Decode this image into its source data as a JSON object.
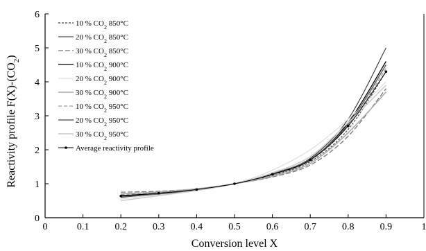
{
  "chart_data": {
    "type": "line",
    "xlabel": "Conversion level X",
    "ylabel": "Reactivity profile F(X)-(CO",
    "ylabel_sub": "2",
    "ylabel_close": ")",
    "xlim": [
      0,
      1
    ],
    "ylim": [
      0,
      6
    ],
    "x_ticks": [
      "0",
      "0.1",
      "0.2",
      "0.3",
      "0.4",
      "0.5",
      "0.6",
      "0.7",
      "0.8",
      "0.9",
      "1"
    ],
    "y_ticks": [
      "0",
      "1",
      "2",
      "3",
      "4",
      "5",
      "6"
    ],
    "grid": false,
    "legend_position": "top-left",
    "series": [
      {
        "name_pre": "10 % CO",
        "name_sub": "2",
        "name_post": " 850°C",
        "color": "#444444",
        "dash": "3,2",
        "width": 1.2,
        "x": [
          0.2,
          0.3,
          0.4,
          0.5,
          0.6,
          0.7,
          0.8,
          0.9
        ],
        "y": [
          0.7,
          0.75,
          0.85,
          1.0,
          1.25,
          1.65,
          2.6,
          4.3
        ]
      },
      {
        "name_pre": "20 % CO",
        "name_sub": "2",
        "name_post": " 850°C",
        "color": "#222222",
        "dash": "",
        "width": 1.0,
        "x": [
          0.2,
          0.3,
          0.4,
          0.5,
          0.6,
          0.7,
          0.8,
          0.9
        ],
        "y": [
          0.6,
          0.7,
          0.82,
          1.0,
          1.3,
          1.75,
          2.9,
          5.0
        ]
      },
      {
        "name_pre": "30 % CO",
        "name_sub": "2",
        "name_post": " 850°C",
        "color": "#777777",
        "dash": "7,3",
        "width": 1.3,
        "x": [
          0.2,
          0.3,
          0.4,
          0.5,
          0.6,
          0.7,
          0.8,
          0.9
        ],
        "y": [
          0.75,
          0.78,
          0.85,
          1.0,
          1.2,
          1.55,
          2.4,
          3.8
        ]
      },
      {
        "name_pre": "10 % CO",
        "name_sub": "2",
        "name_post": " 900°C",
        "color": "#000000",
        "dash": "",
        "width": 1.3,
        "x": [
          0.2,
          0.3,
          0.4,
          0.5,
          0.6,
          0.7,
          0.8,
          0.9
        ],
        "y": [
          0.65,
          0.72,
          0.83,
          1.0,
          1.27,
          1.7,
          2.8,
          4.6
        ]
      },
      {
        "name_pre": "20 % CO",
        "name_sub": "2",
        "name_post": " 900°C",
        "color": "#dddddd",
        "dash": "",
        "width": 1.2,
        "x": [
          0.2,
          0.3,
          0.4,
          0.5,
          0.6,
          0.7,
          0.8,
          0.9
        ],
        "y": [
          0.55,
          0.68,
          0.8,
          1.0,
          1.4,
          2.0,
          2.9,
          4.0
        ]
      },
      {
        "name_pre": "30 % CO",
        "name_sub": "2",
        "name_post": " 900°C",
        "color": "#aaaaaa",
        "dash": "",
        "width": 1.6,
        "x": [
          0.2,
          0.3,
          0.4,
          0.5,
          0.6,
          0.7,
          0.8,
          0.9
        ],
        "y": [
          0.7,
          0.76,
          0.85,
          1.0,
          1.22,
          1.6,
          2.5,
          3.7
        ]
      },
      {
        "name_pre": "10 % CO",
        "name_sub": "2",
        "name_post": " 950°C",
        "color": "#999999",
        "dash": "5,3",
        "width": 1.3,
        "x": [
          0.2,
          0.3,
          0.4,
          0.5,
          0.6,
          0.7,
          0.8,
          0.9
        ],
        "y": [
          0.68,
          0.74,
          0.84,
          1.0,
          1.26,
          1.68,
          2.7,
          4.4
        ]
      },
      {
        "name_pre": "20 % CO",
        "name_sub": "2",
        "name_post": " 950°C",
        "color": "#666666",
        "dash": "",
        "width": 1.6,
        "x": [
          0.2,
          0.3,
          0.4,
          0.5,
          0.6,
          0.7,
          0.8,
          0.9
        ],
        "y": [
          0.62,
          0.7,
          0.82,
          1.0,
          1.3,
          1.72,
          2.75,
          4.5
        ]
      },
      {
        "name_pre": "30 % CO",
        "name_sub": "2",
        "name_post": " 950°C",
        "color": "#cccccc",
        "dash": "",
        "width": 1.6,
        "x": [
          0.2,
          0.3,
          0.4,
          0.5,
          0.6,
          0.7,
          0.8,
          0.9
        ],
        "y": [
          0.5,
          0.65,
          0.8,
          1.0,
          1.32,
          1.8,
          2.8,
          3.9
        ]
      },
      {
        "name_pre": "Average reactivity profile",
        "name_sub": "",
        "name_post": "",
        "color": "#000000",
        "dash": "",
        "width": 1.0,
        "markers": true,
        "x": [
          0.2,
          0.3,
          0.4,
          0.5,
          0.6,
          0.7,
          0.8,
          0.9
        ],
        "y": [
          0.64,
          0.72,
          0.83,
          1.0,
          1.28,
          1.7,
          2.7,
          4.3
        ]
      }
    ]
  }
}
